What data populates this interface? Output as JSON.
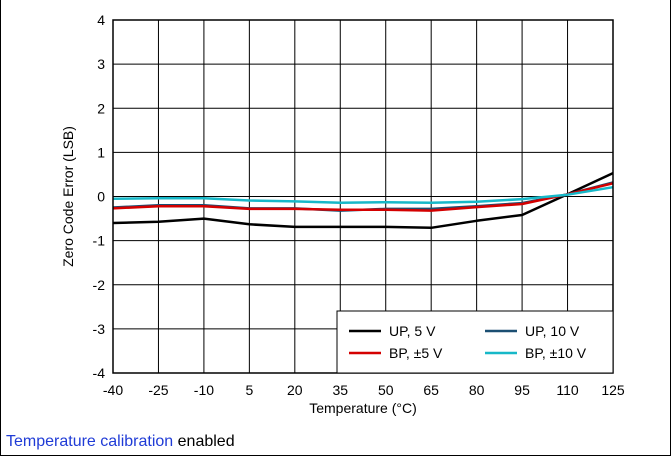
{
  "chart_data": {
    "type": "line",
    "xlabel": "Temperature (°C)",
    "ylabel": "Zero Code Error (LSB)",
    "x": [
      -40,
      -25,
      -10,
      5,
      20,
      35,
      50,
      65,
      80,
      95,
      110,
      125
    ],
    "x_ticks": [
      "-40",
      "-25",
      "-10",
      "5",
      "20",
      "35",
      "50",
      "65",
      "80",
      "95",
      "110",
      "125"
    ],
    "y_ticks": [
      "4",
      "3",
      "2",
      "1",
      "0",
      "-1",
      "-2",
      "-3",
      "-4"
    ],
    "xlim": [
      -40,
      125
    ],
    "ylim": [
      -4,
      4
    ],
    "grid": true,
    "legend_position": "bottom-right",
    "series": [
      {
        "name": "UP, 5 V",
        "color": "#000000",
        "values": [
          -0.6,
          -0.57,
          -0.5,
          -0.63,
          -0.69,
          -0.69,
          -0.69,
          -0.71,
          -0.55,
          -0.42,
          0.05,
          0.53
        ]
      },
      {
        "name": "UP, 10 V",
        "color": "#1b4f72",
        "values": [
          -0.25,
          -0.2,
          -0.2,
          -0.27,
          -0.27,
          -0.32,
          -0.28,
          -0.28,
          -0.22,
          -0.15,
          0.05,
          0.32
        ]
      },
      {
        "name": "BP, ±5 V",
        "color": "#d40000",
        "values": [
          -0.27,
          -0.22,
          -0.22,
          -0.28,
          -0.28,
          -0.3,
          -0.3,
          -0.32,
          -0.24,
          -0.17,
          0.05,
          0.3
        ]
      },
      {
        "name": "BP, ±10 V",
        "color": "#17b8c8",
        "values": [
          -0.05,
          -0.04,
          -0.04,
          -0.09,
          -0.11,
          -0.14,
          -0.13,
          -0.14,
          -0.12,
          -0.06,
          0.04,
          0.21
        ]
      }
    ]
  },
  "caption": {
    "link_text": "Temperature calibration",
    "rest_text": " enabled"
  }
}
